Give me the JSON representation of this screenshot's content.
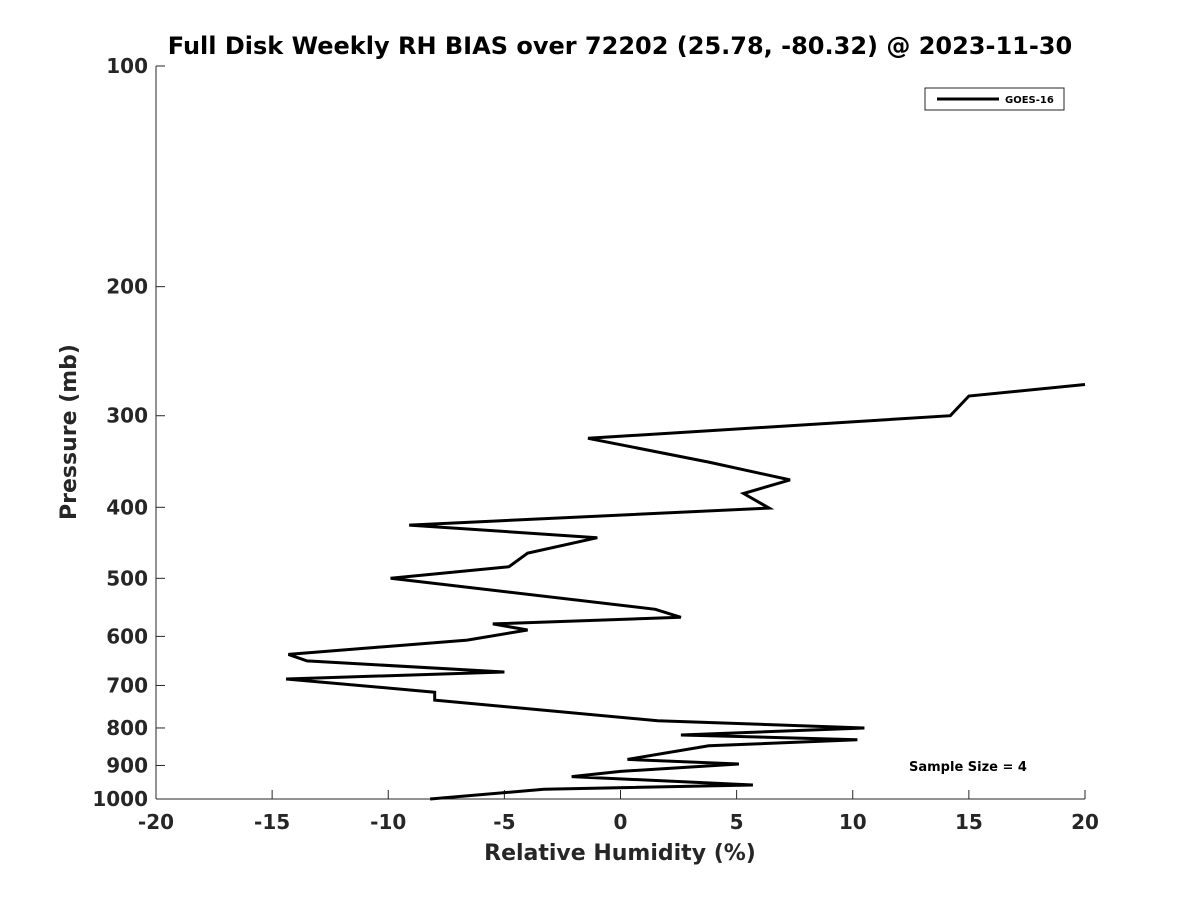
{
  "chart_data": {
    "type": "line",
    "title": "Full Disk Weekly RH BIAS over 72202 (25.78, -80.32) @ 2023-11-30",
    "xlabel": "Relative Humidity (%)",
    "ylabel": "Pressure (mb)",
    "xlim": [
      -20,
      20
    ],
    "ylim": [
      100,
      1000
    ],
    "y_scale": "log",
    "y_reversed": true,
    "x_ticks": [
      -20,
      -15,
      -10,
      -5,
      0,
      5,
      10,
      15,
      20
    ],
    "x_tick_labels": [
      "-20",
      "-15",
      "-10",
      "-5",
      "0",
      "5",
      "10",
      "15",
      "20"
    ],
    "y_ticks": [
      100,
      200,
      300,
      400,
      500,
      600,
      700,
      800,
      900,
      1000
    ],
    "y_tick_labels": [
      "100",
      "200",
      "300",
      "400",
      "500",
      "600",
      "700",
      "800",
      "900",
      "1000"
    ],
    "grid": false,
    "legend_position": "top-right",
    "series": [
      {
        "name": "GOES-16",
        "color": "#000000",
        "x": [
          20,
          15,
          14.2,
          -1.4,
          3.8,
          7.3,
          5.3,
          6.4,
          -9.1,
          -1.0,
          -4.0,
          -4.8,
          -9.9,
          1.5,
          2.6,
          -5.5,
          -4.0,
          -6.6,
          -14.3,
          -13.5,
          -5.0,
          -14.4,
          -8.0,
          -8.0,
          1.6,
          10.5,
          2.6,
          10.2,
          3.8,
          0.3,
          5.1,
          0.0,
          -2.1,
          5.7,
          -3.3,
          -8.2
        ],
        "y": [
          272,
          282,
          300,
          322,
          347,
          367,
          383,
          401,
          423,
          440,
          462,
          482,
          500,
          551,
          565,
          577,
          588,
          607,
          635,
          648,
          671,
          686,
          715,
          733,
          782,
          800,
          818,
          830,
          846,
          883,
          896,
          917,
          932,
          957,
          970,
          1000
        ]
      }
    ],
    "annotations": [
      "Sample Size = 4"
    ]
  }
}
